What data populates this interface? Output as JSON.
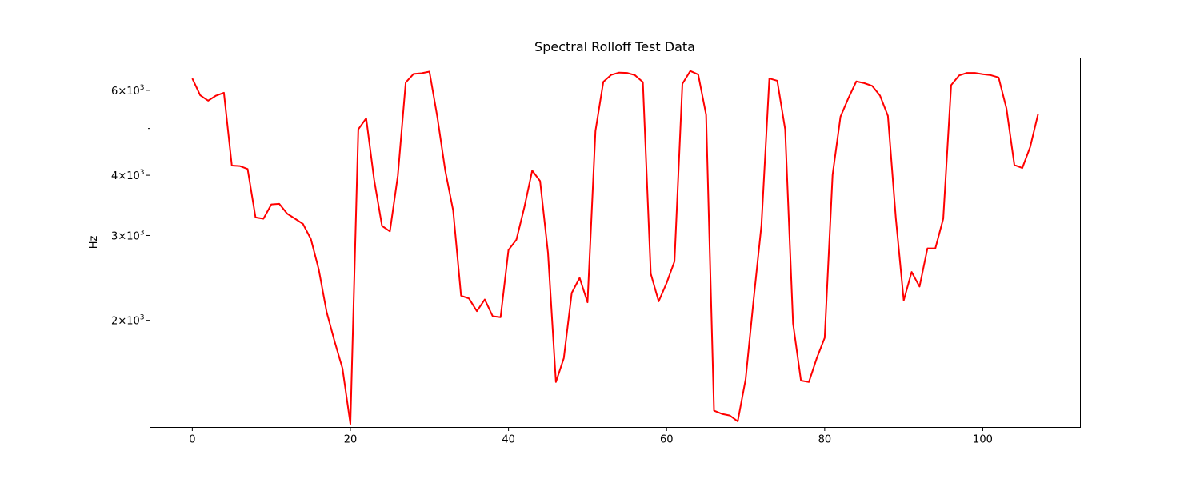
{
  "chart_data": {
    "type": "line",
    "title": "Spectral Rolloff Test Data",
    "xlabel": "",
    "ylabel": "Hz",
    "y_scale": "log",
    "xlim": [
      -5.35,
      112.35
    ],
    "ylim": [
      1200,
      7000
    ],
    "x_ticks": [
      0,
      20,
      40,
      60,
      80,
      100
    ],
    "x_tick_labels": [
      "0",
      "20",
      "40",
      "60",
      "80",
      "100"
    ],
    "y_ticks": [
      2000,
      3000,
      4000,
      6000
    ],
    "y_tick_labels": [
      {
        "base": "2",
        "exp": "3"
      },
      {
        "base": "3",
        "exp": "3"
      },
      {
        "base": "4",
        "exp": "3"
      },
      {
        "base": "6",
        "exp": "3"
      }
    ],
    "y_minor_ticks": [
      5000
    ],
    "grid": false,
    "line_color": "#ff0000",
    "series": [
      {
        "values": [
          6350,
          5860,
          5710,
          5850,
          5930,
          4190,
          4180,
          4120,
          3270,
          3250,
          3480,
          3490,
          3330,
          3250,
          3170,
          2950,
          2550,
          2080,
          1810,
          1590,
          1220,
          4980,
          5250,
          3920,
          3140,
          3060,
          3990,
          6230,
          6490,
          6510,
          6560,
          5280,
          4090,
          3380,
          2250,
          2220,
          2090,
          2210,
          2040,
          2030,
          2800,
          2940,
          3430,
          4090,
          3890,
          2760,
          1490,
          1670,
          2280,
          2450,
          2180,
          4940,
          6250,
          6460,
          6530,
          6520,
          6450,
          6240,
          2500,
          2190,
          2390,
          2650,
          6190,
          6580,
          6470,
          5340,
          1300,
          1280,
          1270,
          1235,
          1510,
          2200,
          3150,
          6350,
          6280,
          4980,
          1970,
          1500,
          1490,
          1670,
          1840,
          4010,
          5290,
          5780,
          6260,
          6210,
          6130,
          5850,
          5310,
          3260,
          2200,
          2520,
          2350,
          2820,
          2820,
          3250,
          6150,
          6440,
          6520,
          6520,
          6480,
          6450,
          6380,
          5500,
          4200,
          4140,
          4580,
          5360
        ]
      }
    ]
  }
}
